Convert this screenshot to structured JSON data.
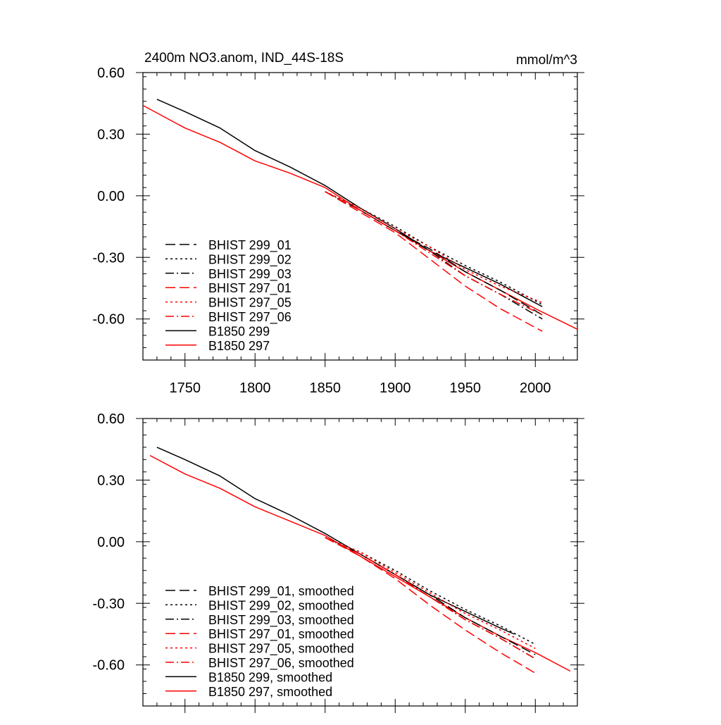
{
  "chart_data": [
    {
      "type": "line",
      "title": "2400m NO3.anom, IND_44S-18S",
      "units": "mmol/m^3",
      "xlim": [
        1720,
        2030
      ],
      "ylim": [
        -0.8,
        0.6
      ],
      "x_ticks": [
        1750,
        1800,
        1850,
        1900,
        1950,
        2000
      ],
      "x_tick_labels": [
        "1750",
        "1800",
        "1850",
        "1900",
        "1950",
        "2000"
      ],
      "y_ticks": [
        0.6,
        0.3,
        0.0,
        -0.3,
        -0.6
      ],
      "y_tick_labels": [
        "0.60",
        "0.30",
        "0.00",
        "-0.30",
        "-0.60"
      ],
      "legend_position": "bottom-left",
      "series": [
        {
          "name": "BHIST 299_01",
          "color": "#000000",
          "dash": "dashed",
          "points": [
            [
              1850,
              0.02
            ],
            [
              1875,
              -0.07
            ],
            [
              1900,
              -0.17
            ],
            [
              1925,
              -0.26
            ],
            [
              1950,
              -0.37
            ],
            [
              1975,
              -0.46
            ],
            [
              2005,
              -0.58
            ]
          ]
        },
        {
          "name": "BHIST 299_02",
          "color": "#000000",
          "dash": "dotted",
          "points": [
            [
              1850,
              0.02
            ],
            [
              1875,
              -0.06
            ],
            [
              1900,
              -0.15
            ],
            [
              1925,
              -0.25
            ],
            [
              1950,
              -0.34
            ],
            [
              1975,
              -0.42
            ],
            [
              2005,
              -0.53
            ]
          ]
        },
        {
          "name": "BHIST 299_03",
          "color": "#000000",
          "dash": "dashdot",
          "points": [
            [
              1850,
              0.02
            ],
            [
              1875,
              -0.07
            ],
            [
              1900,
              -0.17
            ],
            [
              1925,
              -0.27
            ],
            [
              1950,
              -0.39
            ],
            [
              1975,
              -0.48
            ],
            [
              2005,
              -0.6
            ]
          ]
        },
        {
          "name": "BHIST 297_01",
          "color": "#ff0000",
          "dash": "dashed",
          "points": [
            [
              1850,
              0.02
            ],
            [
              1875,
              -0.08
            ],
            [
              1900,
              -0.18
            ],
            [
              1925,
              -0.31
            ],
            [
              1950,
              -0.44
            ],
            [
              1975,
              -0.55
            ],
            [
              2005,
              -0.66
            ]
          ]
        },
        {
          "name": "BHIST 297_05",
          "color": "#ff0000",
          "dash": "dotted",
          "points": [
            [
              1850,
              0.02
            ],
            [
              1875,
              -0.06
            ],
            [
              1900,
              -0.16
            ],
            [
              1925,
              -0.25
            ],
            [
              1950,
              -0.36
            ],
            [
              1975,
              -0.44
            ],
            [
              2005,
              -0.52
            ]
          ]
        },
        {
          "name": "BHIST 297_06",
          "color": "#ff0000",
          "dash": "dashdot",
          "points": [
            [
              1850,
              0.02
            ],
            [
              1875,
              -0.07
            ],
            [
              1900,
              -0.17
            ],
            [
              1925,
              -0.28
            ],
            [
              1950,
              -0.39
            ],
            [
              1975,
              -0.48
            ],
            [
              2005,
              -0.58
            ]
          ]
        },
        {
          "name": "B1850 299",
          "color": "#000000",
          "dash": "solid",
          "points": [
            [
              1730,
              0.47
            ],
            [
              1750,
              0.41
            ],
            [
              1775,
              0.33
            ],
            [
              1800,
              0.22
            ],
            [
              1825,
              0.14
            ],
            [
              1850,
              0.05
            ],
            [
              1875,
              -0.06
            ],
            [
              1900,
              -0.16
            ],
            [
              1925,
              -0.27
            ],
            [
              1950,
              -0.35
            ],
            [
              1975,
              -0.43
            ],
            [
              2005,
              -0.54
            ]
          ]
        },
        {
          "name": "B1850 297",
          "color": "#ff0000",
          "dash": "solid",
          "points": [
            [
              1720,
              0.44
            ],
            [
              1750,
              0.33
            ],
            [
              1775,
              0.26
            ],
            [
              1800,
              0.17
            ],
            [
              1825,
              0.11
            ],
            [
              1850,
              0.04
            ],
            [
              1875,
              -0.07
            ],
            [
              1900,
              -0.17
            ],
            [
              1925,
              -0.27
            ],
            [
              1950,
              -0.37
            ],
            [
              1975,
              -0.46
            ],
            [
              2000,
              -0.55
            ],
            [
              2030,
              -0.65
            ]
          ]
        }
      ]
    },
    {
      "type": "line",
      "title": "",
      "xlim": [
        1720,
        2030
      ],
      "ylim": [
        -0.8,
        0.6
      ],
      "x_ticks": [
        1750,
        1800,
        1850,
        1900,
        1950,
        2000
      ],
      "y_ticks": [
        0.6,
        0.3,
        0.0,
        -0.3,
        -0.6
      ],
      "y_tick_labels": [
        "0.60",
        "0.30",
        "0.00",
        "-0.30",
        "-0.60"
      ],
      "legend_position": "bottom-left",
      "series": [
        {
          "name": "BHIST 299_01, smoothed",
          "color": "#000000",
          "dash": "dashed",
          "points": [
            [
              1850,
              0.02
            ],
            [
              1875,
              -0.06
            ],
            [
              1900,
              -0.16
            ],
            [
              1925,
              -0.26
            ],
            [
              1950,
              -0.37
            ],
            [
              1975,
              -0.46
            ],
            [
              2000,
              -0.55
            ]
          ]
        },
        {
          "name": "BHIST 299_02, smoothed",
          "color": "#000000",
          "dash": "dotted",
          "points": [
            [
              1850,
              0.02
            ],
            [
              1875,
              -0.05
            ],
            [
              1900,
              -0.14
            ],
            [
              1925,
              -0.24
            ],
            [
              1950,
              -0.33
            ],
            [
              1975,
              -0.41
            ],
            [
              2000,
              -0.5
            ]
          ]
        },
        {
          "name": "BHIST 299_03, smoothed",
          "color": "#000000",
          "dash": "dashdot",
          "points": [
            [
              1850,
              0.02
            ],
            [
              1875,
              -0.06
            ],
            [
              1900,
              -0.16
            ],
            [
              1925,
              -0.27
            ],
            [
              1950,
              -0.38
            ],
            [
              1975,
              -0.47
            ],
            [
              2000,
              -0.57
            ]
          ]
        },
        {
          "name": "BHIST 297_01, smoothed",
          "color": "#ff0000",
          "dash": "dashed",
          "points": [
            [
              1850,
              0.02
            ],
            [
              1875,
              -0.07
            ],
            [
              1900,
              -0.18
            ],
            [
              1925,
              -0.31
            ],
            [
              1950,
              -0.43
            ],
            [
              1975,
              -0.54
            ],
            [
              2000,
              -0.64
            ]
          ]
        },
        {
          "name": "BHIST 297_05, smoothed",
          "color": "#ff0000",
          "dash": "dotted",
          "points": [
            [
              1850,
              0.02
            ],
            [
              1875,
              -0.05
            ],
            [
              1900,
              -0.15
            ],
            [
              1925,
              -0.25
            ],
            [
              1950,
              -0.35
            ],
            [
              1975,
              -0.43
            ],
            [
              2000,
              -0.52
            ]
          ]
        },
        {
          "name": "BHIST 297_06, smoothed",
          "color": "#ff0000",
          "dash": "dashdot",
          "points": [
            [
              1850,
              0.02
            ],
            [
              1875,
              -0.06
            ],
            [
              1900,
              -0.16
            ],
            [
              1925,
              -0.27
            ],
            [
              1950,
              -0.38
            ],
            [
              1975,
              -0.47
            ],
            [
              2000,
              -0.57
            ]
          ]
        },
        {
          "name": "B1850 299, smoothed",
          "color": "#000000",
          "dash": "solid",
          "points": [
            [
              1730,
              0.46
            ],
            [
              1750,
              0.4
            ],
            [
              1775,
              0.32
            ],
            [
              1800,
              0.21
            ],
            [
              1825,
              0.13
            ],
            [
              1850,
              0.04
            ],
            [
              1875,
              -0.06
            ],
            [
              1900,
              -0.16
            ],
            [
              1925,
              -0.26
            ],
            [
              1950,
              -0.34
            ],
            [
              1975,
              -0.42
            ],
            [
              1985,
              -0.45
            ]
          ]
        },
        {
          "name": "B1850 297, smoothed",
          "color": "#ff0000",
          "dash": "solid",
          "points": [
            [
              1725,
              0.42
            ],
            [
              1750,
              0.33
            ],
            [
              1775,
              0.26
            ],
            [
              1800,
              0.17
            ],
            [
              1825,
              0.1
            ],
            [
              1850,
              0.03
            ],
            [
              1875,
              -0.07
            ],
            [
              1900,
              -0.17
            ],
            [
              1925,
              -0.27
            ],
            [
              1950,
              -0.37
            ],
            [
              1975,
              -0.46
            ],
            [
              2000,
              -0.54
            ],
            [
              2025,
              -0.63
            ]
          ]
        }
      ]
    }
  ]
}
